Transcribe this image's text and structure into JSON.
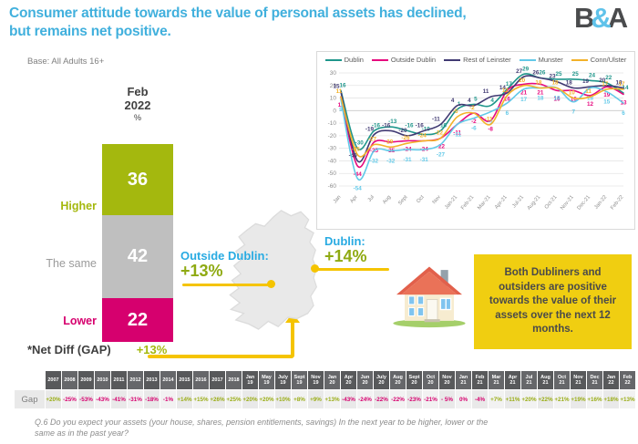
{
  "colors": {
    "title_blue": "#41b0dd",
    "positive_green": "#9aad16",
    "negative_pink": "#d6006e",
    "accent_yellow": "#f5c400",
    "box_yellow": "#f0ce11",
    "label_blue": "#29abe2"
  },
  "header": {
    "title_line1": "Consumer attitude towards the value of personal assets has declined,",
    "title_line2": "but remains net positive.",
    "logo_b": "B",
    "logo_amp": "&",
    "logo_a": "A"
  },
  "base_note": "Base: All Adults 16+",
  "icons": {
    "house": "house-icon"
  },
  "map": {
    "outside_dublin_label": "Outside Dublin:",
    "outside_dublin_value": "+13%",
    "dublin_label": "Dublin:",
    "dublin_value": "+14%"
  },
  "info_box": {
    "text": "Both Dubliners and outsiders are positive towards the value of their assets over the next 12 months."
  },
  "footnote": "Q.6 Do you expect your assets (your house, shares, pension entitlements, savings) In the next year to be higher, lower or the same as in the past year?",
  "chart_data": [
    {
      "type": "line",
      "title": "",
      "x": [
        "Jan",
        "Apr",
        "Jul",
        "Aug",
        "Sept",
        "Oct",
        "Nov",
        "Jan-21",
        "Feb-21",
        "Mar-21",
        "Apr-21",
        "Jul-21",
        "Aug-21",
        "Oct-21",
        "Nov-21",
        "Dec-21",
        "Jan-22",
        "Feb-22"
      ],
      "ylim": [
        -60,
        30
      ],
      "yticks": [
        30,
        20,
        10,
        0,
        -10,
        -20,
        -30,
        -40,
        -50,
        -60
      ],
      "grid": true,
      "legend_position": "top",
      "series": [
        {
          "name": "Dublin",
          "color": "#1f968b",
          "values": [
            16,
            -30,
            -16,
            -13,
            -16,
            -19,
            -16,
            1,
            5,
            4,
            17,
            29,
            26,
            25,
            25,
            24,
            22,
            14
          ]
        },
        {
          "name": "Outside Dublin",
          "color": "#e6097e",
          "values": [
            11,
            -44,
            -25,
            -25,
            -24,
            -24,
            -22,
            -11,
            -2,
            -8,
            16,
            21,
            21,
            16,
            16,
            12,
            19,
            13
          ]
        },
        {
          "name": "Rest of Leinster",
          "color": "#413a73",
          "values": [
            15,
            -40,
            -19,
            -16,
            -20,
            -16,
            -11,
            4,
            4,
            11,
            14,
            27,
            26,
            23,
            18,
            19,
            20,
            18
          ]
        },
        {
          "name": "Munster",
          "color": "#62c9e8",
          "values": [
            9,
            -54,
            -32,
            -32,
            -31,
            -31,
            -27,
            -11,
            -6,
            -1,
            6,
            17,
            18,
            18,
            7,
            18,
            15,
            6
          ]
        },
        {
          "name": "Conn/Ulster",
          "color": "#f3b229",
          "values": [
            11,
            -35,
            -27,
            -29,
            -26,
            -24,
            -22,
            -5,
            -2,
            -11,
            12,
            20,
            18,
            18,
            10,
            11,
            17,
            17
          ]
        }
      ]
    },
    {
      "type": "bar",
      "stacked": true,
      "title": "Feb 2022 %",
      "period_line1": "Feb",
      "period_line2": "2022",
      "period_line3": "%",
      "categories": [
        "Feb 2022"
      ],
      "series": [
        {
          "name": "Higher",
          "values": [
            36
          ],
          "color": "#a4b80e"
        },
        {
          "name": "The same",
          "values": [
            42
          ],
          "color": "#bfbfbf"
        },
        {
          "name": "Lower",
          "values": [
            22
          ],
          "color": "#d6006e"
        }
      ],
      "annotation": {
        "label": "*Net Diff (GAP)",
        "value": "+13%"
      }
    },
    {
      "type": "table",
      "row_label": "Gap",
      "columns": [
        "2007",
        "2008",
        "2009",
        "2010",
        "2011",
        "2012",
        "2013",
        "2014",
        "2015",
        "2016",
        "2017",
        "2018",
        "Jan 19",
        "May 19",
        "July 19",
        "Sept 19",
        "Nov 19",
        "Jan 20",
        "Apr 20",
        "Jun 20",
        "July 20",
        "Aug 20",
        "Sept 20",
        "Oct 20",
        "Nov 20",
        "Jan 21",
        "Feb 21",
        "Mar 21",
        "Apr 21",
        "Jul 21",
        "Aug 21",
        "Oct 21",
        "Nov 21",
        "Dec 21",
        "Jan 22",
        "Feb 22"
      ],
      "values": [
        "+20%",
        "-25%",
        "-53%",
        "-43%",
        "-41%",
        "-31%",
        "-18%",
        "-1%",
        "+14%",
        "+15%",
        "+26%",
        "+25%",
        "+20%",
        "+20%",
        "+10%",
        "+8%",
        "+9%",
        "+13%",
        "-43%",
        "-24%",
        "-22%",
        "-22%",
        "-23%",
        "-21%",
        "- 5%",
        "0%",
        "-4%",
        "+7%",
        "+11%",
        "+20%",
        "+22%",
        "+21%",
        "+19%",
        "+16%",
        "+18%",
        "+13%"
      ]
    }
  ]
}
